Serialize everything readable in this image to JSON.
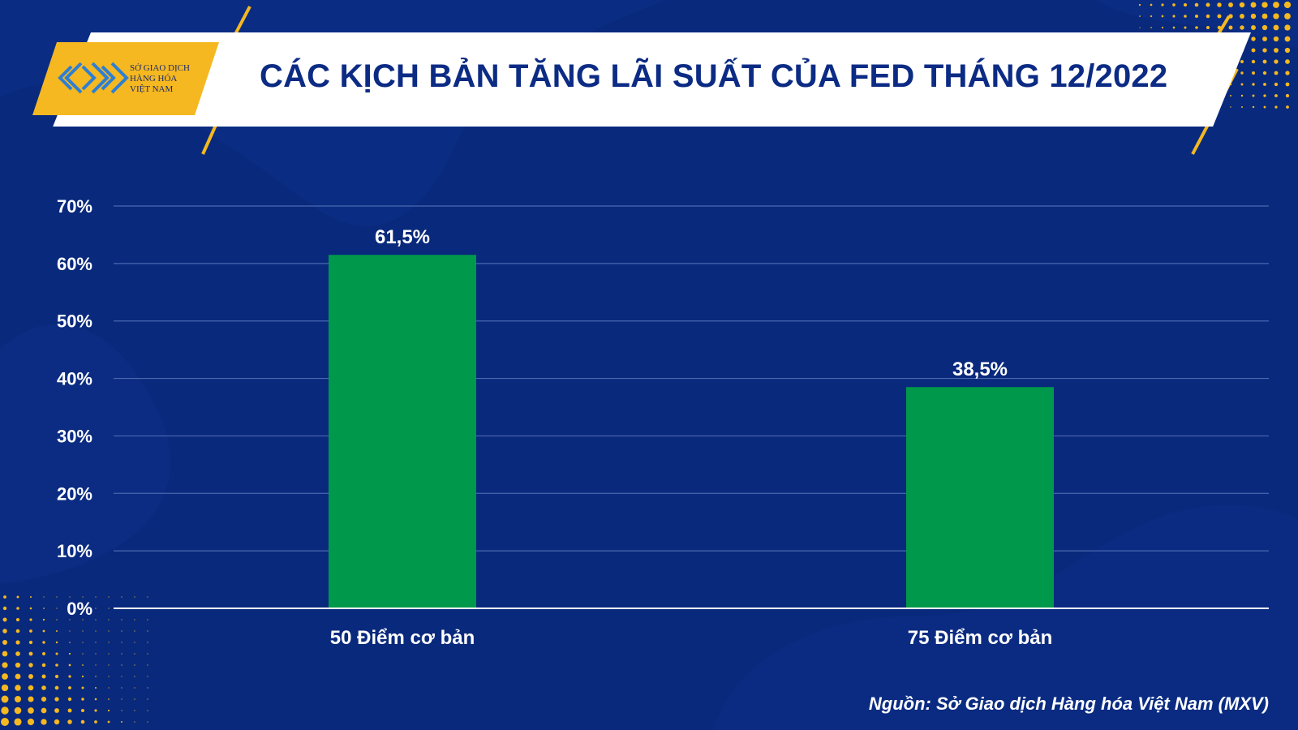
{
  "header": {
    "title": "CÁC KỊCH BẢN TĂNG LÃI SUẤT CỦA FED THÁNG 12/2022",
    "logo_lines": [
      "SỞ GIAO DỊCH",
      "HÀNG HÓA",
      "VIỆT NAM"
    ]
  },
  "source": "Nguồn: Sở Giao dịch Hàng hóa Việt Nam (MXV)",
  "colors": {
    "background": "#09297c",
    "bar": "#00984a",
    "accent": "#f5b820",
    "title_text": "#0c2b84",
    "gridline": "#4b68b0"
  },
  "chart_data": {
    "type": "bar",
    "categories": [
      "50 Điểm cơ bản",
      "75 Điểm cơ bản"
    ],
    "values": [
      61.5,
      38.5
    ],
    "data_labels": [
      "61,5%",
      "38,5%"
    ],
    "yticks": [
      0,
      10,
      20,
      30,
      40,
      50,
      60,
      70
    ],
    "ytick_labels": [
      "0%",
      "10%",
      "20%",
      "30%",
      "40%",
      "50%",
      "60%",
      "70%"
    ],
    "ylim": [
      0,
      70
    ],
    "grid": true,
    "legend": "none",
    "title": "CÁC KỊCH BẢN TĂNG LÃI SUẤT CỦA FED THÁNG 12/2022",
    "xlabel": "",
    "ylabel": ""
  }
}
